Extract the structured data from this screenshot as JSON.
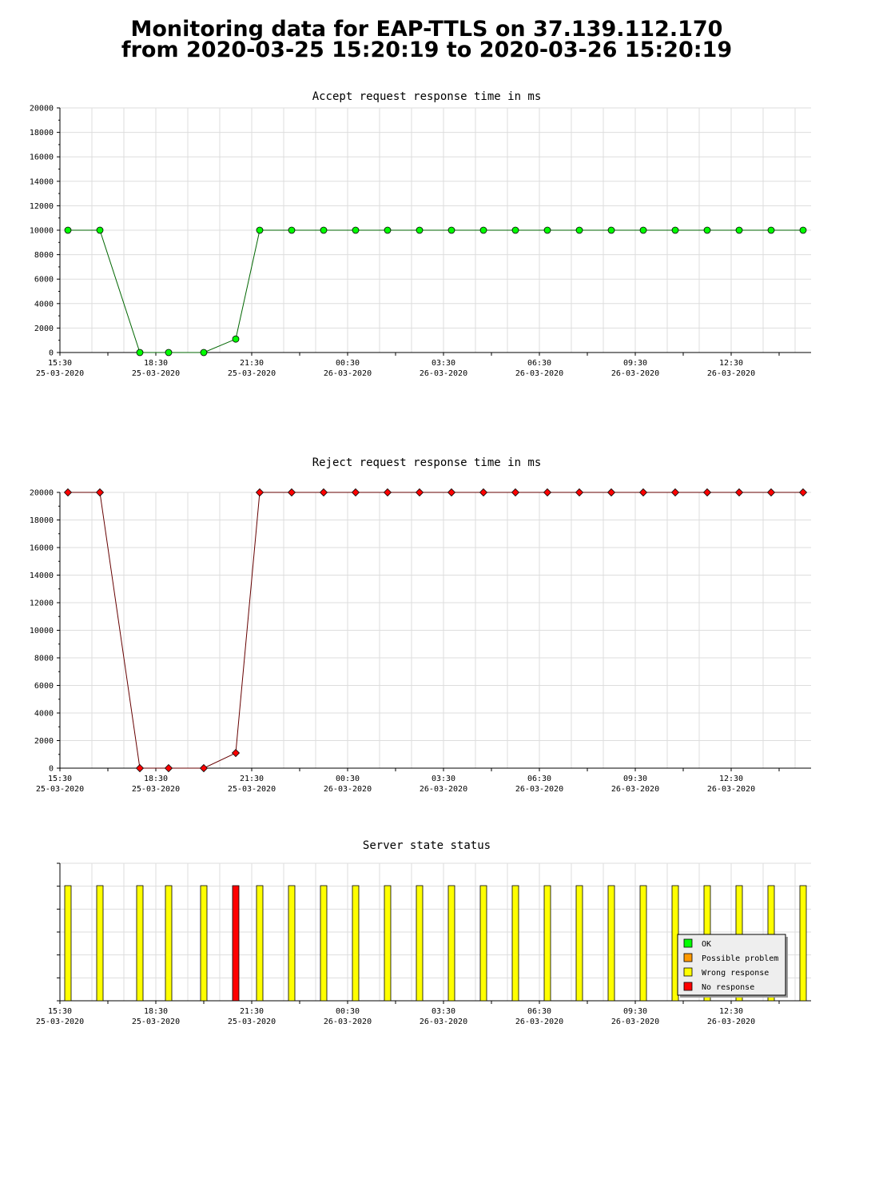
{
  "page": {
    "title_line1": "Monitoring data for EAP-TTLS on 37.139.112.170",
    "title_line2": "from 2020-03-25 15:20:19 to 2020-03-26 15:20:19"
  },
  "x_ticks": [
    {
      "time": "15:30",
      "date": "25-03-2020",
      "hour": 0
    },
    {
      "time": "18:30",
      "date": "25-03-2020",
      "hour": 3
    },
    {
      "time": "21:30",
      "date": "25-03-2020",
      "hour": 6
    },
    {
      "time": "00:30",
      "date": "26-03-2020",
      "hour": 9
    },
    {
      "time": "03:30",
      "date": "26-03-2020",
      "hour": 12
    },
    {
      "time": "06:30",
      "date": "26-03-2020",
      "hour": 15
    },
    {
      "time": "09:30",
      "date": "26-03-2020",
      "hour": 18
    },
    {
      "time": "12:30",
      "date": "26-03-2020",
      "hour": 21
    }
  ],
  "chart_data": [
    {
      "type": "line",
      "title": "Accept request response time in ms",
      "title_color": "#006633",
      "line_color": "#006600",
      "marker_color": "#00ff00",
      "marker": "circle",
      "ylim": [
        0,
        20000
      ],
      "y_ticks": [
        0,
        2000,
        4000,
        6000,
        8000,
        10000,
        12000,
        14000,
        16000,
        18000,
        20000
      ],
      "x_hours": [
        0.25,
        1.25,
        2.5,
        3.4,
        4.5,
        5.5,
        6.25,
        7.25,
        8.25,
        9.25,
        10.25,
        11.25,
        12.25,
        13.25,
        14.25,
        15.25,
        16.25,
        17.25,
        18.25,
        19.25,
        20.25,
        21.25,
        22.25,
        23.25
      ],
      "values": [
        10000,
        10000,
        0,
        0,
        0,
        1100,
        10000,
        10000,
        10000,
        10000,
        10000,
        10000,
        10000,
        10000,
        10000,
        10000,
        10000,
        10000,
        10000,
        10000,
        10000,
        10000,
        10000,
        10000
      ]
    },
    {
      "type": "line",
      "title": "Reject request response time in ms",
      "title_color": "#660000",
      "line_color": "#660000",
      "marker_color": "#ff0000",
      "marker": "diamond",
      "ylim": [
        0,
        20000
      ],
      "y_ticks": [
        0,
        2000,
        4000,
        6000,
        8000,
        10000,
        12000,
        14000,
        16000,
        18000,
        20000
      ],
      "x_hours": [
        0.25,
        1.25,
        2.5,
        3.4,
        4.5,
        5.5,
        6.25,
        7.25,
        8.25,
        9.25,
        10.25,
        11.25,
        12.25,
        13.25,
        14.25,
        15.25,
        16.25,
        17.25,
        18.25,
        19.25,
        20.25,
        21.25,
        22.25,
        23.25
      ],
      "values": [
        20000,
        20000,
        0,
        0,
        0,
        1100,
        20000,
        20000,
        20000,
        20000,
        20000,
        20000,
        20000,
        20000,
        20000,
        20000,
        20000,
        20000,
        20000,
        20000,
        20000,
        20000,
        20000,
        20000
      ]
    },
    {
      "type": "bar",
      "title": "Server state status",
      "title_color": "#660000",
      "x_hours": [
        0.25,
        1.25,
        2.5,
        3.4,
        4.5,
        5.5,
        6.25,
        7.25,
        8.25,
        9.25,
        10.25,
        11.25,
        12.25,
        13.25,
        14.25,
        15.25,
        16.25,
        17.25,
        18.25,
        19.25,
        20.25,
        21.25,
        22.25,
        23.25
      ],
      "states": [
        "Wrong response",
        "Wrong response",
        "Wrong response",
        "Wrong response",
        "Wrong response",
        "No response",
        "Wrong response",
        "Wrong response",
        "Wrong response",
        "Wrong response",
        "Wrong response",
        "Wrong response",
        "Wrong response",
        "Wrong response",
        "Wrong response",
        "Wrong response",
        "Wrong response",
        "Wrong response",
        "Wrong response",
        "Wrong response",
        "Wrong response",
        "Wrong response",
        "Wrong response",
        "Wrong response"
      ],
      "legend": [
        {
          "label": "OK",
          "color": "#00ff00"
        },
        {
          "label": "Possible problem",
          "color": "#ff9900"
        },
        {
          "label": "Wrong response",
          "color": "#ffff00"
        },
        {
          "label": "No response",
          "color": "#ff0000"
        }
      ],
      "legend_position": "bottom-right"
    }
  ]
}
